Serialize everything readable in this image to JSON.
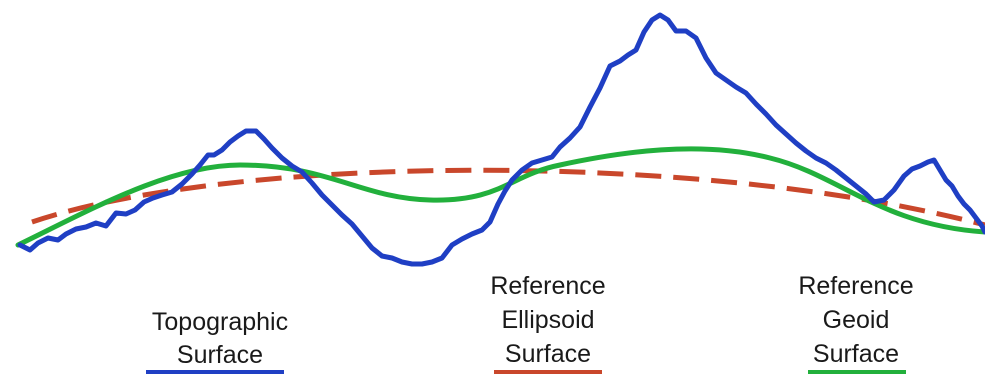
{
  "legend": [
    {
      "lines": [
        "Topographic",
        "Surface"
      ],
      "color": "#1f3fc4",
      "icon": "blue-line-swatch"
    },
    {
      "lines": [
        "Reference",
        "Ellipsoid",
        "Surface"
      ],
      "color": "#c9472b",
      "icon": "red-dashed-line-swatch"
    },
    {
      "lines": [
        "Reference",
        "Geoid",
        "Surface"
      ],
      "color": "#22b03c",
      "icon": "green-line-swatch"
    }
  ],
  "colors": {
    "topographic": "#1f3fc4",
    "ellipsoid": "#c9472b",
    "geoid": "#22b03c"
  }
}
